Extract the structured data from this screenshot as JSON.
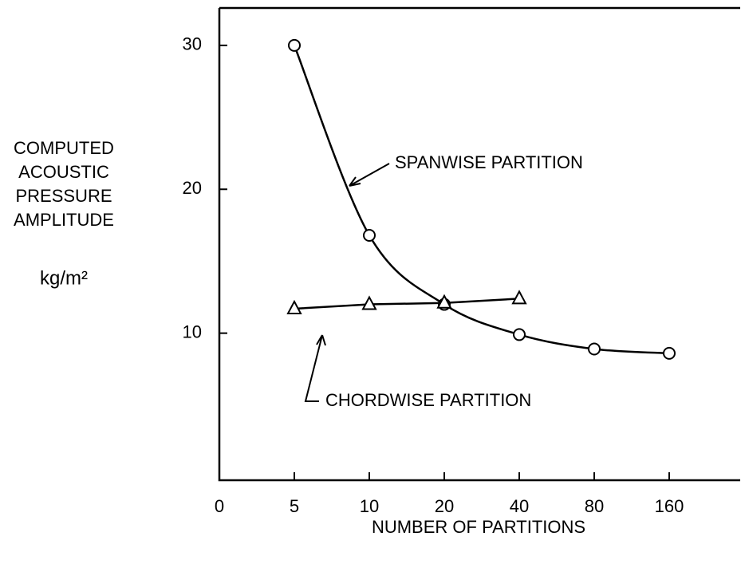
{
  "chart_data": {
    "type": "line",
    "x_label": "NUMBER OF PARTITIONS",
    "y_label": [
      "COMPUTED",
      "ACOUSTIC",
      "PRESSURE",
      "AMPLITUDE"
    ],
    "y_unit": "kg/m²",
    "categories": [
      "0",
      "5",
      "10",
      "20",
      "40",
      "80",
      "160"
    ],
    "series": [
      {
        "name": "SPANWISE PARTITION",
        "color": "#000000",
        "marker": "circle",
        "smooth": true,
        "values": [
          null,
          30,
          16.8,
          12,
          9.9,
          8.9,
          8.6
        ]
      },
      {
        "name": "CHORDWISE PARTITION",
        "color": "#000000",
        "marker": "triangle",
        "smooth": false,
        "values": [
          null,
          11.7,
          12,
          12.1,
          12.4,
          null,
          null
        ]
      }
    ],
    "ylim": [
      0,
      32.6
    ],
    "yticks": [
      10,
      20,
      30
    ],
    "grid": false
  }
}
